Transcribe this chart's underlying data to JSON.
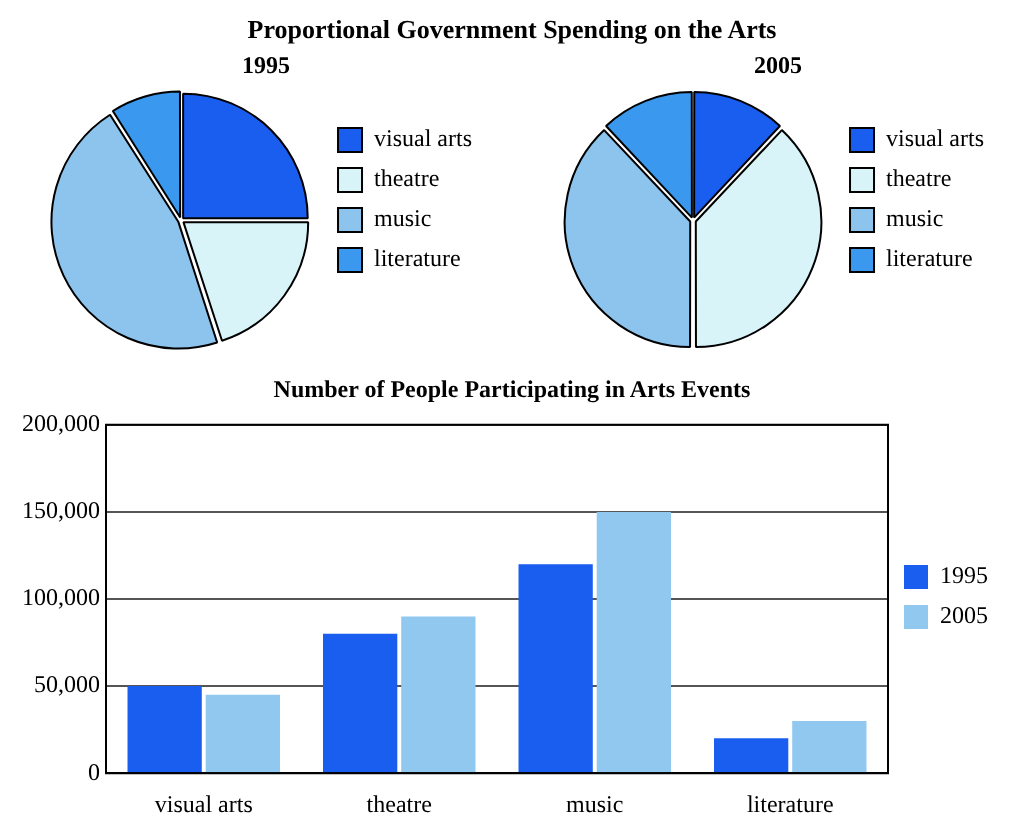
{
  "chart_data": [
    {
      "type": "pie",
      "title": "Proportional Government Spending on the Arts",
      "subtitle": "1995",
      "categories": [
        "visual arts",
        "theatre",
        "music",
        "literature"
      ],
      "values": [
        25,
        20,
        46,
        9
      ],
      "colors": [
        "#1a5ef0",
        "#d8f4f8",
        "#8cc4ee",
        "#3a98ee"
      ],
      "legend": "right"
    },
    {
      "type": "pie",
      "title": "2005",
      "categories": [
        "visual arts",
        "theatre",
        "music",
        "literature"
      ],
      "values": [
        12,
        38,
        38,
        12
      ],
      "colors": [
        "#1a5ef0",
        "#d8f4f8",
        "#8cc4ee",
        "#3a98ee"
      ],
      "legend": "right"
    },
    {
      "type": "bar",
      "title": "Number of People Participating in Arts Events",
      "categories": [
        "visual arts",
        "theatre",
        "music",
        "literature"
      ],
      "series": [
        {
          "name": "1995",
          "color": "#1a5ef0",
          "values": [
            50000,
            80000,
            120000,
            20000
          ]
        },
        {
          "name": "2005",
          "color": "#90c8f0",
          "values": [
            45000,
            90000,
            150000,
            30000
          ]
        }
      ],
      "ylim": [
        0,
        200000
      ],
      "yticks": [
        {
          "value": 0,
          "label": "0"
        },
        {
          "value": 50000,
          "label": "50,000"
        },
        {
          "value": 100000,
          "label": "100,000"
        },
        {
          "value": 150000,
          "label": "150,000"
        },
        {
          "value": 200000,
          "label": "200,000"
        }
      ],
      "grid": "y",
      "legend": "right"
    }
  ]
}
